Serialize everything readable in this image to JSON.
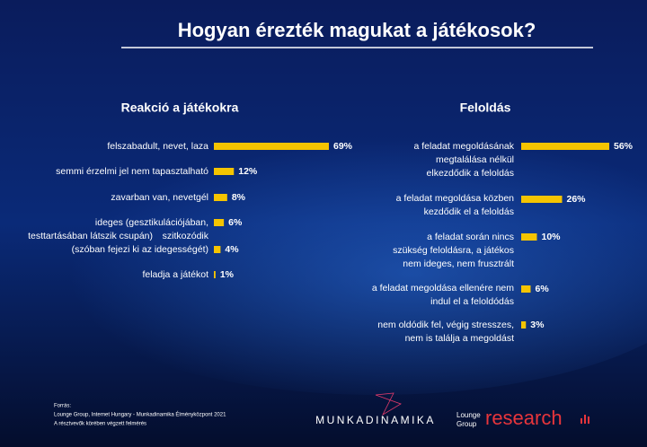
{
  "title": "Hogyan érezték magukat a játékosok?",
  "chart_data": [
    {
      "type": "bar",
      "title": "Reakció a játékokra",
      "categories": [
        [
          "felszabadult, nevet, laza"
        ],
        [
          "semmi érzelmi jel nem tapasztalható"
        ],
        [
          "zavarban van, nevetgél"
        ],
        [
          "ideges (gesztikulációjában,",
          "testtartásában látszik csupán)"
        ],
        [
          "szitkozódik",
          "(szóban fejezi ki az idegességét)"
        ],
        [
          "feladja a játékot"
        ]
      ],
      "values": [
        69,
        12,
        8,
        6,
        4,
        1
      ],
      "value_labels": [
        "69%",
        "12%",
        "8%",
        "6%",
        "4%",
        "1%"
      ],
      "color": "#f5c400"
    },
    {
      "type": "bar",
      "title": "Feloldás",
      "categories": [
        [
          "a feladat megoldásának",
          "megtalálása nélkül",
          "elkezdődik a feloldás"
        ],
        [
          "a feladat megoldása közben",
          "kezdődik el a feloldás"
        ],
        [
          "a feladat során nincs",
          "szükség feloldásra, a játékos",
          "nem ideges, nem frusztrált"
        ],
        [
          "a feladat megoldása ellenére nem",
          "indul el a feloldódás"
        ],
        [
          "nem oldódik fel, végig stresszes,",
          "nem is találja a megoldást"
        ]
      ],
      "values": [
        56,
        26,
        10,
        6,
        3
      ],
      "value_labels": [
        "56%",
        "26%",
        "10%",
        "6%",
        "3%"
      ],
      "color": "#f5c400"
    }
  ],
  "footer": {
    "source_label": "Forrás:",
    "source": "Lounge Group, Internet Hungary - Munkadinamika Élményközpont 2021",
    "note": "A résztvevők körében végzett felmérés"
  },
  "logos": {
    "munkadinamika": "MUNKADINAMIKA",
    "lounge": [
      "Lounge",
      "Group"
    ],
    "research": "research"
  }
}
